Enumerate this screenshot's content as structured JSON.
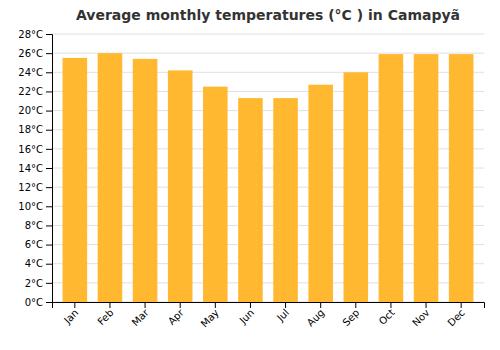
{
  "chart_data": {
    "type": "bar",
    "title": "Average monthly temperatures (°C ) in Camapуã",
    "categories": [
      "Jan",
      "Feb",
      "Mar",
      "Apr",
      "May",
      "Jun",
      "Jul",
      "Aug",
      "Sep",
      "Oct",
      "Nov",
      "Dec"
    ],
    "values": [
      25.5,
      26.0,
      25.4,
      24.2,
      22.5,
      21.3,
      21.3,
      22.7,
      24.0,
      25.9,
      25.9,
      25.9
    ],
    "color": "#FFB830",
    "ylim": [
      0,
      28
    ],
    "yticks": [
      {
        "value": 0,
        "label": "0°C"
      },
      {
        "value": 2,
        "label": "2°C"
      },
      {
        "value": 4,
        "label": "4°C"
      },
      {
        "value": 6,
        "label": "6°C"
      },
      {
        "value": 8,
        "label": "8°C"
      },
      {
        "value": 10,
        "label": "10°C"
      },
      {
        "value": 12,
        "label": "12°C"
      },
      {
        "value": 14,
        "label": "14°C"
      },
      {
        "value": 16,
        "label": "16°C"
      },
      {
        "value": 18,
        "label": "18°C"
      },
      {
        "value": 20,
        "label": "20°C"
      },
      {
        "value": 22,
        "label": "22°C"
      },
      {
        "value": 24,
        "label": "24°C"
      },
      {
        "value": 26,
        "label": "26°C"
      },
      {
        "value": 28,
        "label": "28°C"
      }
    ],
    "grid": true
  }
}
